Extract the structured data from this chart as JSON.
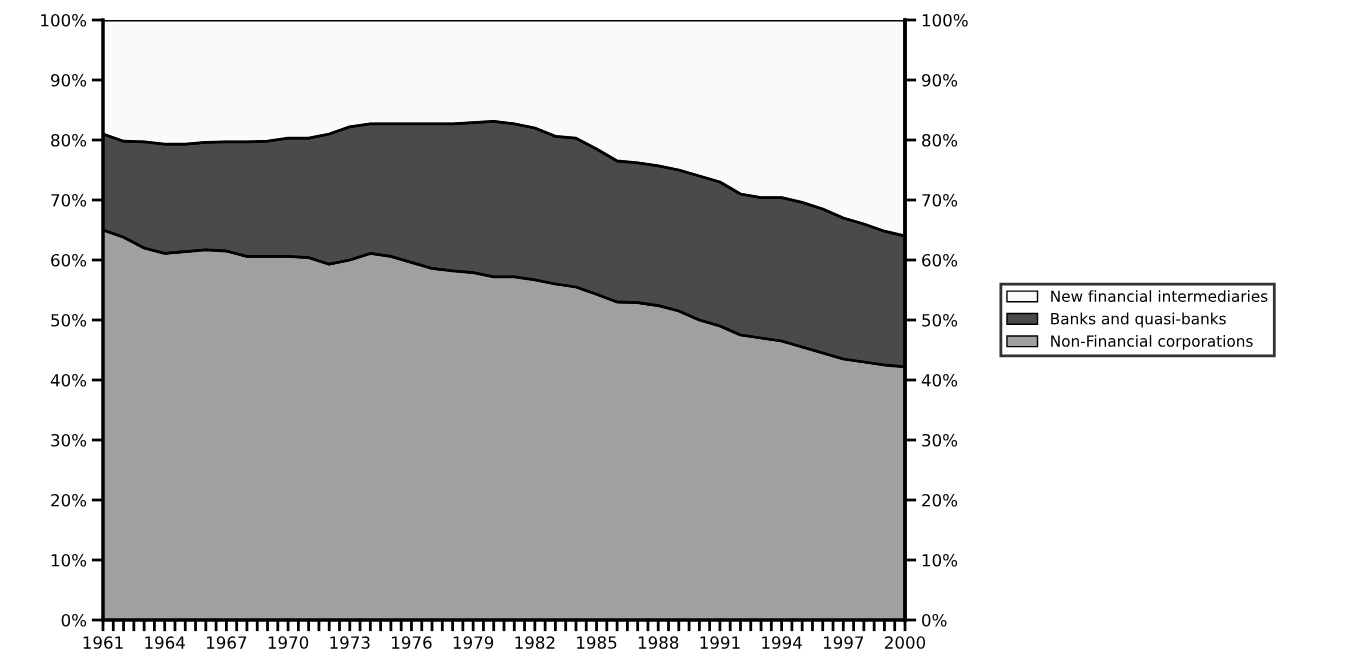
{
  "chart_data": {
    "type": "area",
    "stacked": true,
    "legend": "right",
    "grid": false,
    "x": [
      1961,
      1962,
      1963,
      1964,
      1965,
      1966,
      1967,
      1968,
      1969,
      1970,
      1971,
      1972,
      1973,
      1974,
      1975,
      1976,
      1977,
      1978,
      1979,
      1980,
      1981,
      1982,
      1983,
      1984,
      1985,
      1986,
      1987,
      1988,
      1989,
      1990,
      1991,
      1992,
      1993,
      1994,
      1995,
      1996,
      1997,
      1998,
      1999,
      2000
    ],
    "series": [
      {
        "name": "Non-Financial corporations",
        "color": "#a0a0a0",
        "values": [
          65.0,
          63.8,
          62.0,
          61.1,
          61.4,
          61.7,
          61.5,
          60.6,
          60.6,
          60.6,
          60.4,
          59.3,
          60.0,
          61.1,
          60.6,
          59.6,
          58.6,
          58.2,
          57.9,
          57.2,
          57.2,
          56.7,
          56.0,
          55.5,
          54.3,
          53.0,
          52.9,
          52.4,
          51.5,
          50.0,
          49.0,
          47.5,
          47.0,
          46.5,
          45.5,
          44.5,
          43.5,
          43.0,
          42.5,
          42.2
        ]
      },
      {
        "name": "Banks and quasi-banks",
        "color": "#4a4a4a",
        "values": [
          16.0,
          16.0,
          17.7,
          18.2,
          17.9,
          17.9,
          18.2,
          19.1,
          19.2,
          19.7,
          19.9,
          21.7,
          22.2,
          21.6,
          22.1,
          23.1,
          24.1,
          24.5,
          25.0,
          25.9,
          25.5,
          25.3,
          24.6,
          24.8,
          24.2,
          23.5,
          23.3,
          23.3,
          23.5,
          24.0,
          24.0,
          23.5,
          23.4,
          23.9,
          24.1,
          24.0,
          23.5,
          23.0,
          22.3,
          21.8
        ]
      },
      {
        "name": "New financial intermediaries",
        "color": "#fafafa",
        "values": [
          19.0,
          20.2,
          20.3,
          20.7,
          20.7,
          20.4,
          20.3,
          20.3,
          20.2,
          19.7,
          19.7,
          19.0,
          17.8,
          17.3,
          17.3,
          17.3,
          17.3,
          17.3,
          17.1,
          16.9,
          17.3,
          18.0,
          19.4,
          19.7,
          21.5,
          23.5,
          23.8,
          24.3,
          25.0,
          26.0,
          27.0,
          29.0,
          29.6,
          29.6,
          30.4,
          31.5,
          33.0,
          34.0,
          35.2,
          36.0
        ]
      }
    ],
    "xlim": [
      1961,
      2000
    ],
    "xticks": [
      {
        "value": 1961,
        "label": "1961"
      },
      {
        "value": 1961.5,
        "label": null
      },
      {
        "value": 1962,
        "label": null
      },
      {
        "value": 1962.5,
        "label": null
      },
      {
        "value": 1963,
        "label": null
      },
      {
        "value": 1963.5,
        "label": null
      },
      {
        "value": 1964,
        "label": "1964"
      },
      {
        "value": 1964.5,
        "label": null
      },
      {
        "value": 1965,
        "label": null
      },
      {
        "value": 1965.5,
        "label": null
      },
      {
        "value": 1966,
        "label": null
      },
      {
        "value": 1966.5,
        "label": null
      },
      {
        "value": 1967,
        "label": "1967"
      },
      {
        "value": 1967.5,
        "label": null
      },
      {
        "value": 1968,
        "label": null
      },
      {
        "value": 1968.5,
        "label": null
      },
      {
        "value": 1969,
        "label": null
      },
      {
        "value": 1969.5,
        "label": null
      },
      {
        "value": 1970,
        "label": "1970"
      },
      {
        "value": 1970.5,
        "label": null
      },
      {
        "value": 1971,
        "label": null
      },
      {
        "value": 1971.5,
        "label": null
      },
      {
        "value": 1972,
        "label": null
      },
      {
        "value": 1972.5,
        "label": null
      },
      {
        "value": 1973,
        "label": "1973"
      },
      {
        "value": 1973.5,
        "label": null
      },
      {
        "value": 1974,
        "label": null
      },
      {
        "value": 1974.5,
        "label": null
      },
      {
        "value": 1975,
        "label": null
      },
      {
        "value": 1975.5,
        "label": null
      },
      {
        "value": 1976,
        "label": "1976"
      },
      {
        "value": 1976.5,
        "label": null
      },
      {
        "value": 1977,
        "label": null
      },
      {
        "value": 1977.5,
        "label": null
      },
      {
        "value": 1978,
        "label": null
      },
      {
        "value": 1978.5,
        "label": null
      },
      {
        "value": 1979,
        "label": "1979"
      },
      {
        "value": 1979.5,
        "label": null
      },
      {
        "value": 1980,
        "label": null
      },
      {
        "value": 1980.5,
        "label": null
      },
      {
        "value": 1981,
        "label": null
      },
      {
        "value": 1981.5,
        "label": null
      },
      {
        "value": 1982,
        "label": "1982"
      },
      {
        "value": 1982.5,
        "label": null
      },
      {
        "value": 1983,
        "label": null
      },
      {
        "value": 1983.5,
        "label": null
      },
      {
        "value": 1984,
        "label": null
      },
      {
        "value": 1984.5,
        "label": null
      },
      {
        "value": 1985,
        "label": "1985"
      },
      {
        "value": 1985.5,
        "label": null
      },
      {
        "value": 1986,
        "label": null
      },
      {
        "value": 1986.5,
        "label": null
      },
      {
        "value": 1987,
        "label": null
      },
      {
        "value": 1987.5,
        "label": null
      },
      {
        "value": 1988,
        "label": "1988"
      },
      {
        "value": 1988.5,
        "label": null
      },
      {
        "value": 1989,
        "label": null
      },
      {
        "value": 1989.5,
        "label": null
      },
      {
        "value": 1990,
        "label": null
      },
      {
        "value": 1990.5,
        "label": null
      },
      {
        "value": 1991,
        "label": "1991"
      },
      {
        "value": 1991.5,
        "label": null
      },
      {
        "value": 1992,
        "label": null
      },
      {
        "value": 1992.5,
        "label": null
      },
      {
        "value": 1993,
        "label": null
      },
      {
        "value": 1993.5,
        "label": null
      },
      {
        "value": 1994,
        "label": "1994"
      },
      {
        "value": 1994.5,
        "label": null
      },
      {
        "value": 1995,
        "label": null
      },
      {
        "value": 1995.5,
        "label": null
      },
      {
        "value": 1996,
        "label": null
      },
      {
        "value": 1996.5,
        "label": null
      },
      {
        "value": 1997,
        "label": "1997"
      },
      {
        "value": 1997.5,
        "label": null
      },
      {
        "value": 1998,
        "label": null
      },
      {
        "value": 1998.5,
        "label": null
      },
      {
        "value": 1999,
        "label": null
      },
      {
        "value": 1999.5,
        "label": null
      },
      {
        "value": 2000,
        "label": "2000"
      }
    ],
    "ylim": [
      0,
      100
    ],
    "yticks": [
      {
        "value": 0,
        "label": "0%"
      },
      {
        "value": 10,
        "label": "10%"
      },
      {
        "value": 20,
        "label": "20%"
      },
      {
        "value": 30,
        "label": "30%"
      },
      {
        "value": 40,
        "label": "40%"
      },
      {
        "value": 50,
        "label": "50%"
      },
      {
        "value": 60,
        "label": "60%"
      },
      {
        "value": 70,
        "label": "70%"
      },
      {
        "value": 80,
        "label": "80%"
      },
      {
        "value": 90,
        "label": "90%"
      },
      {
        "value": 100,
        "label": "100%"
      }
    ],
    "y2lim": [
      0,
      100
    ],
    "y2ticks": [
      {
        "value": 0,
        "label": "0%"
      },
      {
        "value": 10,
        "label": "10%"
      },
      {
        "value": 20,
        "label": "20%"
      },
      {
        "value": 30,
        "label": "30%"
      },
      {
        "value": 40,
        "label": "40%"
      },
      {
        "value": 50,
        "label": "50%"
      },
      {
        "value": 60,
        "label": "60%"
      },
      {
        "value": 70,
        "label": "70%"
      },
      {
        "value": 80,
        "label": "80%"
      },
      {
        "value": 90,
        "label": "90%"
      },
      {
        "value": 100,
        "label": "100%"
      }
    ]
  }
}
